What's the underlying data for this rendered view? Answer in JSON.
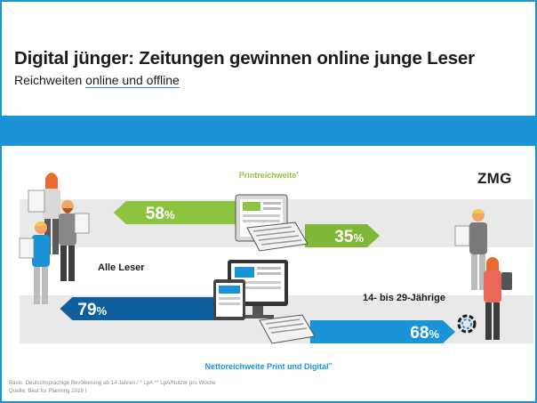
{
  "header": {
    "title": "Digital jünger: Zeitungen gewinnen online junge Leser",
    "subtitle_prefix": "Reichweiten ",
    "subtitle_underlined": "online und offline"
  },
  "logo": {
    "text": "ZMG",
    "icon": "zmg-logo-icon"
  },
  "chart_data": {
    "type": "bar",
    "categories": [
      "Alle Leser",
      "14- bis 29-Jährige"
    ],
    "series": [
      {
        "name": "Printreichweite",
        "name_suffix": "*",
        "values": [
          58,
          35
        ],
        "value_labels": [
          "58%",
          "35%"
        ],
        "color": "#8cc43f"
      },
      {
        "name": "Nettoreichweite Print und Digital",
        "name_suffix": "**",
        "values": [
          79,
          68
        ],
        "value_labels": [
          "79%",
          "68%"
        ],
        "color": "#1a94d6",
        "color_dark": "#0f5f9e"
      }
    ],
    "xlim": [
      0,
      100
    ]
  },
  "footnote": {
    "line1": "Basis: Deutschsprachige Bevölkerung ab 14 Jahren / * LpA ** LpA/Nutzer pro Woche",
    "line2": "Quelle: Best for Planning 2019 I"
  },
  "colors": {
    "accent": "#1a94d6",
    "green": "#8cc43f",
    "navy": "#0f5f9e",
    "gray": "#e6e6e6",
    "text": "#1b1b1b"
  }
}
